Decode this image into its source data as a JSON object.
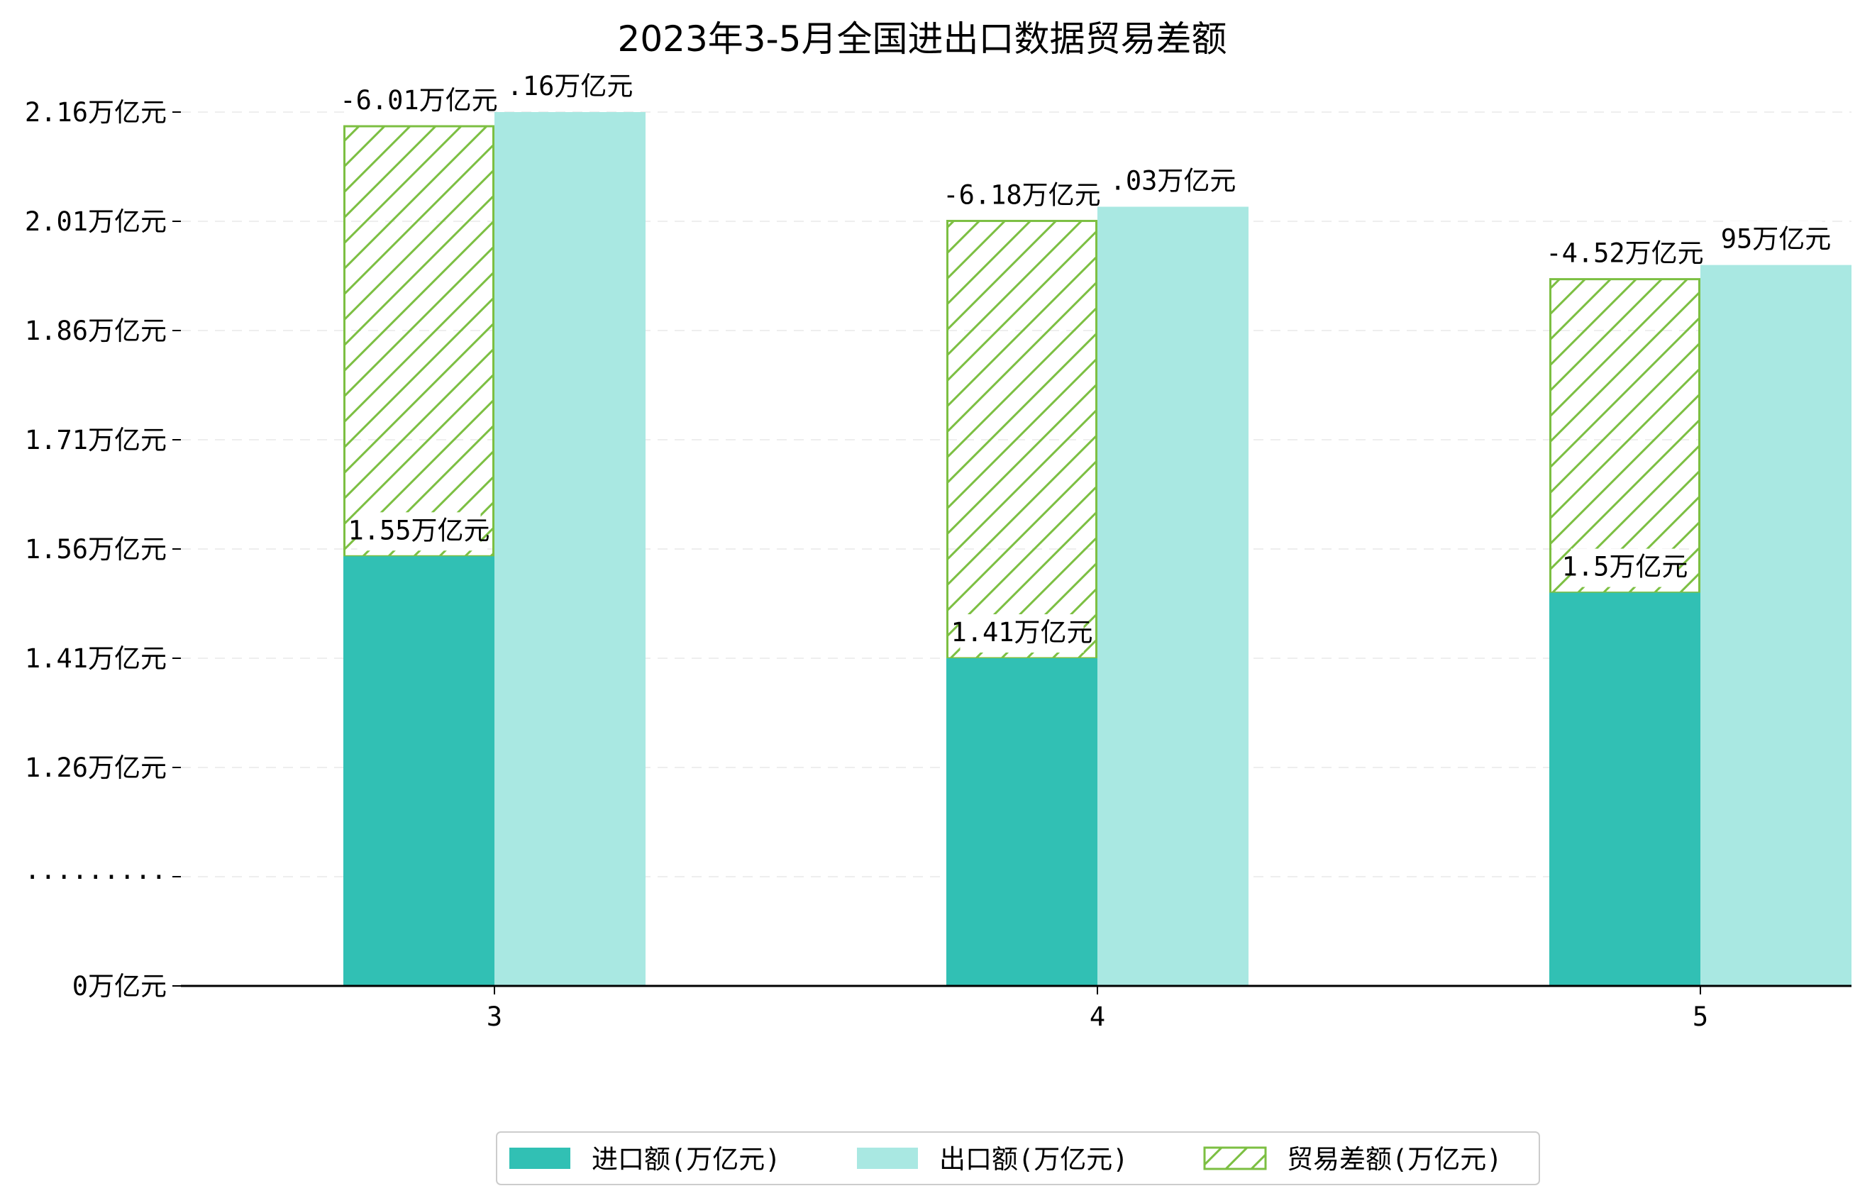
{
  "chart_data": {
    "type": "bar",
    "title": "2023年3-5月全国进出口数据贸易差额",
    "xlabel": "",
    "ylabel": "",
    "categories": [
      "3",
      "4",
      "5"
    ],
    "y_axis": {
      "broken": true,
      "tick_labels": [
        "0万亿元",
        "·········",
        "1.26万亿元",
        "1.41万亿元",
        "1.56万亿元",
        "1.71万亿元",
        "1.86万亿元",
        "2.01万亿元",
        "2.16万亿元"
      ],
      "tick_values": [
        0,
        1.11,
        1.26,
        1.41,
        1.56,
        1.71,
        1.86,
        2.01,
        2.16
      ],
      "ylim": [
        0,
        2.22
      ]
    },
    "grid": "horizontal-dashed",
    "legend_position": "bottom-center",
    "series": [
      {
        "name": "进口额(万亿元)",
        "color": "#31c0b4",
        "values": [
          1.55,
          1.41,
          1.5
        ],
        "labels": [
          "1.55万亿元",
          "1.41万亿元",
          "1.5万亿元"
        ]
      },
      {
        "name": "出口额(万亿元)",
        "color": "#a9e8e2",
        "values": [
          2.16,
          2.03,
          1.95
        ],
        "labels": ".16万亿元|.03万亿元|95万亿元"
      },
      {
        "name": "贸易差额(万亿元)",
        "color": "#7cbf42",
        "pattern": "hatch",
        "values": [
          -6.01,
          -6.18,
          -4.52
        ],
        "labels": [
          "-6.01万亿元",
          "-6.18万亿元",
          "-4.52万亿元"
        ],
        "stack_top": [
          2.16,
          2.03,
          1.95
        ]
      }
    ]
  }
}
